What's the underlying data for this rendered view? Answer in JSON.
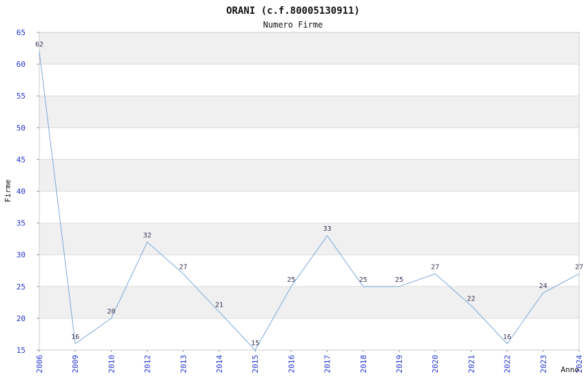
{
  "header": {
    "title": "ORANI (c.f.80005130911)",
    "subtitle": "Numero Firme"
  },
  "chart_data": {
    "type": "line",
    "title": "ORANI (c.f.80005130911)",
    "subtitle": "Numero Firme",
    "xlabel": "Anno",
    "ylabel": "Firme",
    "categories": [
      "2006",
      "2009",
      "2010",
      "2012",
      "2013",
      "2014",
      "2015",
      "2016",
      "2017",
      "2018",
      "2019",
      "2020",
      "2021",
      "2022",
      "2023",
      "2024"
    ],
    "values": [
      62,
      16,
      20,
      32,
      27,
      21,
      15,
      25,
      33,
      25,
      25,
      27,
      22,
      16,
      24,
      27
    ],
    "ylim": [
      15,
      65
    ],
    "ytick_step": 5,
    "yticks": [
      15,
      20,
      25,
      30,
      35,
      40,
      45,
      50,
      55,
      60,
      65
    ],
    "grid": true,
    "legend": "none",
    "band_fill_alternating": true,
    "colors": {
      "line": "#7da7d9",
      "tick_label": "#2233cc",
      "point_label": "#333355",
      "band": "#f0f0f0",
      "band_alt": "#ffffff",
      "plot_border": "#c9c9c9",
      "gridline": "#dcdcdc",
      "tick_mark": "#999999"
    }
  }
}
